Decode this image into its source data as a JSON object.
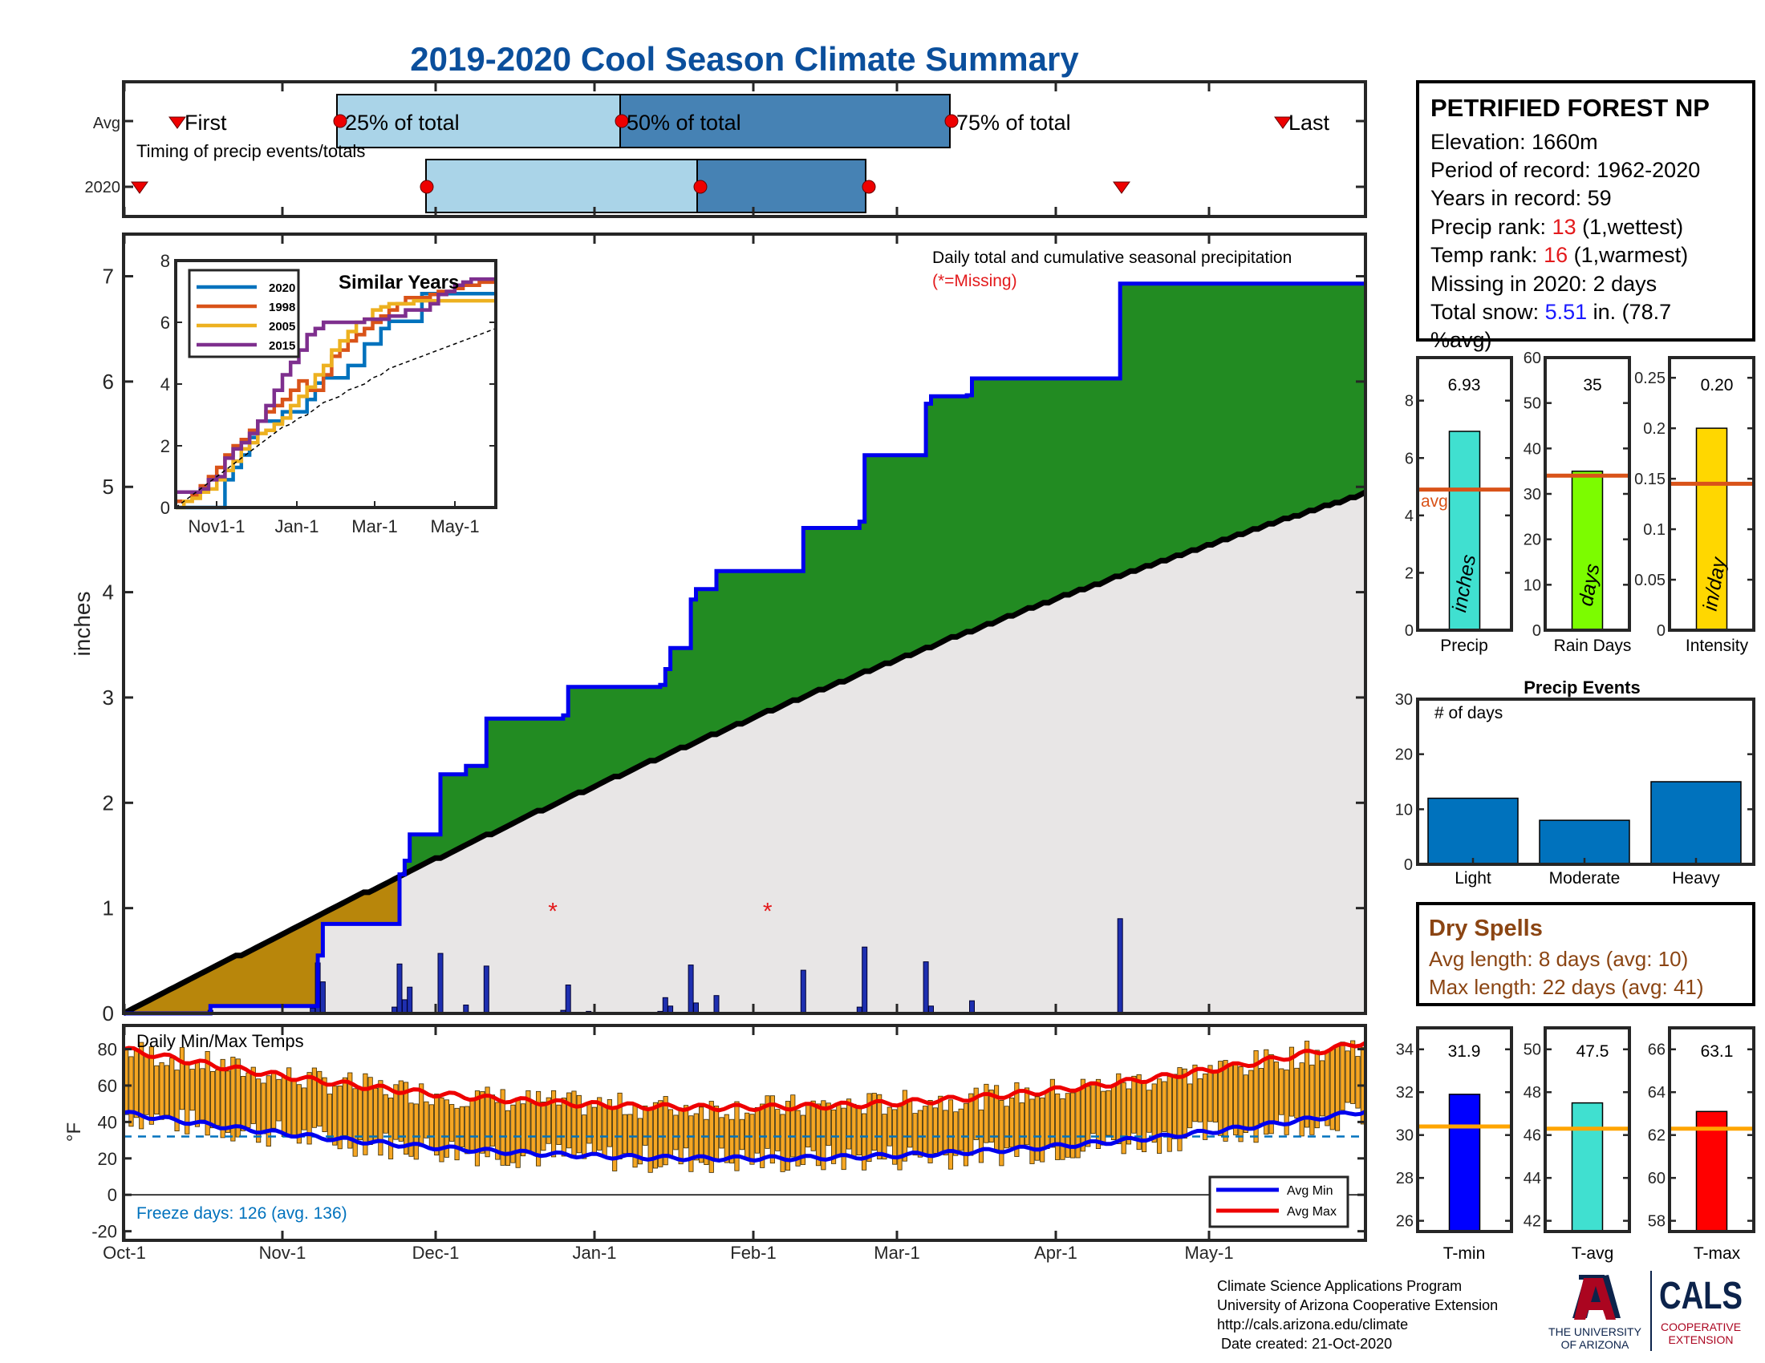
{
  "title": "2019-2020 Cool Season Climate Summary",
  "timing": {
    "avg_label": "Avg",
    "year_label": "2020",
    "note": "Timing of precip events/totals",
    "first": "First",
    "p25": "25% of total",
    "p50": "50% of total",
    "p75": "75% of total",
    "last": "Last"
  },
  "station": {
    "name": "PETRIFIED FOREST NP",
    "elevation": "Elevation: 1660m",
    "period": "Period of record: 1962-2020",
    "years": "Years in record: 59",
    "precip_rank_prefix": "Precip rank: ",
    "precip_rank": "13",
    "precip_rank_suffix": " (1,wettest)",
    "temp_rank_prefix": "Temp rank: ",
    "temp_rank": "16",
    "temp_rank_suffix": " (1,warmest)",
    "missing": "Missing in 2020: 2 days",
    "snow_prefix": "Total snow: ",
    "snow_value": "5.51",
    "snow_suffix": " in. (78.7",
    "snow_suffix2": "%avg)"
  },
  "main_chart": {
    "ylabel": "inches",
    "annotation": "Daily total and cumulative seasonal precipitation",
    "missing_note": "(*=Missing)",
    "x_tick_labels": [
      "Oct-1",
      "Nov-1",
      "Dec-1",
      "Jan-1",
      "Feb-1",
      "Mar-1",
      "Apr-1",
      "May-1"
    ]
  },
  "inset": {
    "title": "Similar Years",
    "x_tick_labels": [
      "Nov1-1",
      "Jan-1",
      "Mar-1",
      "May-1"
    ],
    "legend": [
      "2020",
      "1998",
      "2005",
      "2015"
    ]
  },
  "bars_top": {
    "precip": {
      "value_label": "6.93",
      "unit": "inches",
      "label": "Precip",
      "avg_label": "avg"
    },
    "rain_days": {
      "value_label": "35",
      "unit": "days",
      "label": "Rain Days"
    },
    "intensity": {
      "value_label": "0.20",
      "unit": "in/day",
      "label": "Intensity"
    }
  },
  "events": {
    "title": "Precip Events",
    "ylabel": "# of days",
    "categories": [
      "Light",
      "Moderate",
      "Heavy"
    ]
  },
  "dry_spells": {
    "title": "Dry Spells",
    "avg": "Avg length: 8 days (avg: 10)",
    "max": "Max length: 22 days (avg: 41)"
  },
  "temps": {
    "title": "Daily Min/Max Temps",
    "ylabel": "°F",
    "freeze": "Freeze days: 126 (avg. 136)",
    "legend_min": "Avg Min",
    "legend_max": "Avg Max"
  },
  "temp_bars": {
    "tmin": {
      "value_label": "31.9",
      "label": "T-min"
    },
    "tavg": {
      "value_label": "47.5",
      "label": "T-avg"
    },
    "tmax": {
      "value_label": "63.1",
      "label": "T-max"
    }
  },
  "footer": {
    "line1": "Climate Science Applications Program",
    "line2": "University of Arizona Cooperative Extension",
    "line3": "http://cals.arizona.edu/climate",
    "line4": "Date created: 21-Oct-2020",
    "ua_line1": "THE UNIVERSITY",
    "ua_line2": "OF ARIZONA",
    "cals": "CALS",
    "cals_sub1": "COOPERATIVE",
    "cals_sub2": "EXTENSION"
  },
  "colors": {
    "title": "#0b4f9c",
    "observed_line": "#0000ee",
    "above_fill": "#228b22",
    "below_fill": "#b8860b",
    "avg_fill": "#e8e6e6",
    "rank_red": "#e31a1c",
    "snow_blue": "#1a1aff",
    "dry_brown": "#8b4513",
    "bar_light": "#aad4e8",
    "bar_dark": "#4682b4",
    "temp_bar": "#f5a623"
  },
  "chart_data": [
    {
      "type": "area",
      "name": "main",
      "x_start": "2019-10-01",
      "x_end": "2020-05-31",
      "ylim": [
        0,
        7.4
      ],
      "yticks": [
        0,
        1,
        2,
        3,
        4,
        5,
        6,
        7
      ],
      "avg_cumulative_end": 4.95,
      "observed_cumulative": [
        [
          "2019-10-01",
          0.0
        ],
        [
          "2019-10-18",
          0.07
        ],
        [
          "2019-11-07",
          0.07
        ],
        [
          "2019-11-08",
          0.55
        ],
        [
          "2019-11-09",
          0.85
        ],
        [
          "2019-11-23",
          0.85
        ],
        [
          "2019-11-24",
          1.32
        ],
        [
          "2019-11-25",
          1.45
        ],
        [
          "2019-11-26",
          1.7
        ],
        [
          "2019-12-01",
          1.7
        ],
        [
          "2019-12-02",
          2.27
        ],
        [
          "2019-12-06",
          2.27
        ],
        [
          "2019-12-07",
          2.35
        ],
        [
          "2019-12-10",
          2.35
        ],
        [
          "2019-12-11",
          2.8
        ],
        [
          "2019-12-25",
          2.8
        ],
        [
          "2019-12-26",
          2.83
        ],
        [
          "2019-12-27",
          3.1
        ],
        [
          "2020-01-14",
          3.12
        ],
        [
          "2020-01-15",
          3.27
        ],
        [
          "2020-01-16",
          3.47
        ],
        [
          "2020-01-19",
          3.47
        ],
        [
          "2020-01-20",
          3.93
        ],
        [
          "2020-01-21",
          4.03
        ],
        [
          "2020-01-24",
          4.03
        ],
        [
          "2020-01-25",
          4.2
        ],
        [
          "2020-02-10",
          4.2
        ],
        [
          "2020-02-11",
          4.61
        ],
        [
          "2020-02-21",
          4.61
        ],
        [
          "2020-02-22",
          4.67
        ],
        [
          "2020-02-23",
          5.3
        ],
        [
          "2020-03-05",
          5.3
        ],
        [
          "2020-03-06",
          5.79
        ],
        [
          "2020-03-07",
          5.86
        ],
        [
          "2020-03-14",
          5.87
        ],
        [
          "2020-03-15",
          6.03
        ],
        [
          "2020-04-12",
          6.03
        ],
        [
          "2020-04-13",
          6.93
        ],
        [
          "2020-05-31",
          6.93
        ]
      ],
      "daily_precip": [
        [
          "2019-10-18",
          0.03
        ],
        [
          "2019-11-07",
          0.05
        ],
        [
          "2019-11-08",
          0.48
        ],
        [
          "2019-11-09",
          0.3
        ],
        [
          "2019-11-23",
          0.06
        ],
        [
          "2019-11-24",
          0.47
        ],
        [
          "2019-11-25",
          0.13
        ],
        [
          "2019-11-26",
          0.25
        ],
        [
          "2019-12-02",
          0.57
        ],
        [
          "2019-12-07",
          0.08
        ],
        [
          "2019-12-11",
          0.45
        ],
        [
          "2019-12-26",
          0.03
        ],
        [
          "2019-12-27",
          0.27
        ],
        [
          "2019-12-31",
          0.02
        ],
        [
          "2020-01-14",
          0.02
        ],
        [
          "2020-01-15",
          0.15
        ],
        [
          "2020-01-16",
          0.07
        ],
        [
          "2020-01-20",
          0.46
        ],
        [
          "2020-01-21",
          0.1
        ],
        [
          "2020-01-25",
          0.17
        ],
        [
          "2020-02-11",
          0.41
        ],
        [
          "2020-02-22",
          0.06
        ],
        [
          "2020-02-23",
          0.63
        ],
        [
          "2020-03-06",
          0.49
        ],
        [
          "2020-03-07",
          0.07
        ],
        [
          "2020-03-15",
          0.12
        ],
        [
          "2020-04-13",
          0.9
        ]
      ],
      "missing_dates": [
        "2019-12-24",
        "2020-02-04"
      ]
    },
    {
      "type": "line",
      "name": "similar_years",
      "x": [
        0,
        1,
        2,
        3,
        4,
        5,
        6,
        7,
        8,
        9,
        10,
        11,
        12,
        13,
        14,
        15,
        16,
        17,
        18,
        19,
        20,
        21,
        22,
        23,
        24,
        25,
        26,
        27,
        28,
        29,
        30,
        31,
        32,
        33,
        34,
        35,
        36,
        37,
        38,
        39
      ],
      "x_tick_labels_at": [
        1,
        3,
        5,
        7
      ],
      "ylim": [
        0,
        8
      ],
      "series": [
        {
          "name": "2020",
          "color": "#0072bd",
          "values": [
            0,
            0,
            0,
            0,
            0,
            0,
            0.9,
            1.3,
            1.7,
            2.27,
            2.8,
            2.8,
            2.8,
            3.1,
            3.1,
            3.1,
            3.5,
            4.03,
            4.2,
            4.2,
            4.2,
            4.6,
            4.6,
            5.3,
            5.3,
            5.8,
            6.03,
            6.03,
            6.03,
            6.03,
            6.93,
            6.93,
            6.93,
            6.93,
            6.93,
            6.93,
            6.93,
            6.93,
            6.93,
            6.93
          ]
        },
        {
          "name": "1998",
          "color": "#d95319",
          "values": [
            0.2,
            0.2,
            0.4,
            0.7,
            1,
            1.3,
            1.7,
            2,
            2.2,
            2.5,
            2.8,
            3.1,
            3.3,
            3.5,
            3.8,
            4.1,
            3.8,
            3.8,
            4.3,
            4.9,
            5.1,
            5.4,
            5.6,
            5.8,
            6,
            6.2,
            6.4,
            6.6,
            6.8,
            6.8,
            6.8,
            6.9,
            7,
            7,
            7.1,
            7.2,
            7.2,
            7.3,
            7.3,
            7.3
          ]
        },
        {
          "name": "2005",
          "color": "#edb120",
          "values": [
            0,
            0.2,
            0.3,
            0.5,
            0.6,
            0.9,
            1.2,
            1.5,
            1.9,
            2.1,
            2.4,
            2.5,
            2.7,
            2.9,
            3.3,
            3.6,
            3.9,
            4.3,
            4.6,
            5.1,
            5.4,
            5.7,
            6,
            6.1,
            6.4,
            6.5,
            6.6,
            6.6,
            6.6,
            6.7,
            6.7,
            6.7,
            6.7,
            6.7,
            6.7,
            6.7,
            6.7,
            6.7,
            6.7,
            6.7
          ]
        },
        {
          "name": "2015",
          "color": "#7e2f8e",
          "values": [
            0.5,
            0.5,
            0.5,
            0.6,
            0.9,
            1,
            1.6,
            1.9,
            2.1,
            2.4,
            2.8,
            3.3,
            3.8,
            4.3,
            4.7,
            5.1,
            5.6,
            5.8,
            6,
            6,
            6,
            6,
            6,
            6.1,
            6.1,
            6.1,
            6.2,
            6.2,
            6.4,
            6.4,
            6.4,
            6.6,
            6.9,
            7,
            7.2,
            7.3,
            7.4,
            7.4,
            7.4,
            7.4
          ]
        },
        {
          "name": "average",
          "color": "#000000",
          "values": [
            0,
            0.2,
            0.4,
            0.6,
            0.8,
            1,
            1.2,
            1.4,
            1.6,
            1.8,
            2,
            2.2,
            2.4,
            2.6,
            2.7,
            2.9,
            3,
            3.2,
            3.4,
            3.5,
            3.6,
            3.8,
            3.9,
            4,
            4.2,
            4.3,
            4.5,
            4.6,
            4.7,
            4.8,
            4.9,
            5,
            5.1,
            5.2,
            5.3,
            5.4,
            5.5,
            5.6,
            5.7,
            5.8
          ]
        }
      ]
    },
    {
      "type": "bar",
      "name": "precip_total",
      "values": [
        6.93
      ],
      "avg": 4.9,
      "ylim": [
        0,
        9.5
      ],
      "yticks": [
        0,
        2,
        4,
        6,
        8
      ],
      "color": "#40e0d0"
    },
    {
      "type": "bar",
      "name": "rain_days",
      "values": [
        35
      ],
      "avg": 34,
      "ylim": [
        0,
        60
      ],
      "yticks": [
        0,
        10,
        20,
        30,
        40,
        50,
        60
      ],
      "color": "#7cfc00"
    },
    {
      "type": "bar",
      "name": "intensity",
      "values": [
        0.2
      ],
      "avg": 0.145,
      "ylim": [
        0,
        0.27
      ],
      "yticks": [
        0,
        0.05,
        0.1,
        0.15,
        0.2,
        0.25
      ],
      "ytick_labels": [
        "0",
        "0.05",
        "0.1",
        "0.15",
        "0.2",
        "0.25"
      ],
      "color": "#ffd700"
    },
    {
      "type": "bar",
      "name": "precip_events",
      "categories": [
        "Light",
        "Moderate",
        "Heavy"
      ],
      "values": [
        12,
        8,
        15
      ],
      "ylim": [
        0,
        30
      ],
      "yticks": [
        0,
        10,
        20,
        30
      ],
      "color": "#0072bd"
    },
    {
      "type": "bar",
      "name": "daily_temps",
      "ylim": [
        -25,
        93
      ],
      "yticks": [
        -20,
        0,
        20,
        40,
        60,
        80
      ],
      "days": 244,
      "avg_min_start": 45,
      "avg_min_low": 20,
      "avg_min_end": 46,
      "avg_max_start": 80,
      "avg_max_low": 48,
      "avg_max_end": 84,
      "freezing_line": 32
    },
    {
      "type": "bar",
      "name": "t_min",
      "values": [
        31.9
      ],
      "avg": 30.4,
      "ylim": [
        25.5,
        35
      ],
      "yticks": [
        26,
        28,
        30,
        32,
        34
      ],
      "color": "#0000ff"
    },
    {
      "type": "bar",
      "name": "t_avg",
      "values": [
        47.5
      ],
      "avg": 46.3,
      "ylim": [
        41.5,
        51
      ],
      "yticks": [
        42,
        44,
        46,
        48,
        50
      ],
      "color": "#40e0d0"
    },
    {
      "type": "bar",
      "name": "t_max",
      "values": [
        63.1
      ],
      "avg": 62.3,
      "ylim": [
        57.5,
        67
      ],
      "yticks": [
        58,
        60,
        62,
        64,
        66
      ],
      "color": "#ff0000"
    }
  ]
}
